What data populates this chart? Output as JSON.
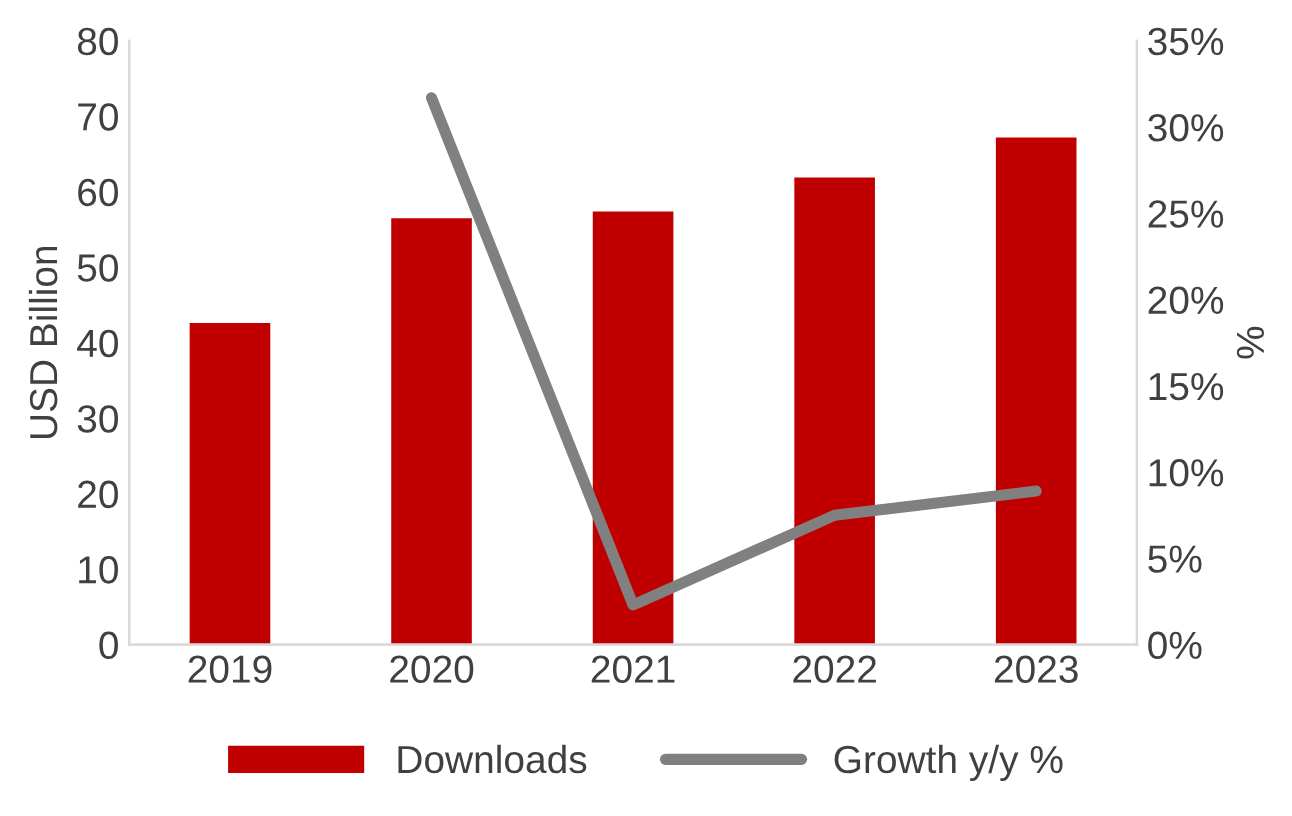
{
  "chart_data": {
    "type": "bar",
    "categories": [
      "2019",
      "2020",
      "2021",
      "2022",
      "2023"
    ],
    "ylabel": "USD Billion",
    "y2label": "%",
    "series": [
      {
        "name": "Downloads",
        "type": "bar",
        "color": "#c00000",
        "values": [
          42.6,
          56.5,
          57.4,
          61.9,
          67.2
        ]
      },
      {
        "name": "Growth y/y %",
        "type": "line",
        "axis": "y2",
        "color": "#808080",
        "values": [
          null,
          31.7,
          2.3,
          7.5,
          8.9
        ]
      }
    ],
    "ylim": [
      0,
      80
    ],
    "yticks": [
      0,
      10,
      20,
      30,
      40,
      50,
      60,
      70,
      80
    ],
    "y2lim": [
      0,
      35
    ],
    "y2ticks": [
      {
        "value": 0,
        "label": "0%"
      },
      {
        "value": 5,
        "label": "5%"
      },
      {
        "value": 10,
        "label": "10%"
      },
      {
        "value": 15,
        "label": "15%"
      },
      {
        "value": 20,
        "label": "20%"
      },
      {
        "value": 25,
        "label": "25%"
      },
      {
        "value": 30,
        "label": "30%"
      },
      {
        "value": 35,
        "label": "35%"
      }
    ],
    "legend": "bottom",
    "grid": false,
    "marker": "none",
    "line_style": "solid"
  }
}
